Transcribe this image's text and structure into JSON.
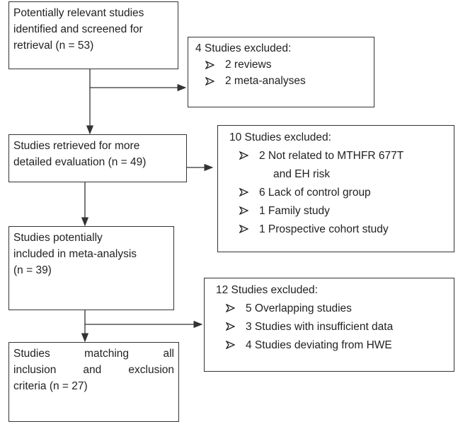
{
  "boxes": [
    {
      "lines": [
        "Potentially relevant studies",
        "identified and screened for",
        "retrieval (n = 53)"
      ]
    },
    {
      "lines": [
        "Studies retrieved for more",
        "detailed evaluation (n = 49)"
      ]
    },
    {
      "lines": [
        "Studies potentially",
        "included in meta-analysis",
        "(n = 39)"
      ]
    },
    {
      "lines": [
        "Studies matching all",
        "inclusion and exclusion",
        "criteria (n = 27)"
      ]
    }
  ],
  "exclusions": [
    {
      "title": "4 Studies excluded:",
      "items": [
        [
          "2 reviews"
        ],
        [
          "2 meta-analyses"
        ]
      ]
    },
    {
      "title": "10 Studies excluded:",
      "items": [
        [
          "2 Not related to MTHFR 677T",
          "and EH risk"
        ],
        [
          "6 Lack of control group"
        ],
        [
          "1 Family study"
        ],
        [
          "1 Prospective cohort study"
        ]
      ]
    },
    {
      "title": "12 Studies excluded:",
      "items": [
        [
          "5 Overlapping studies"
        ],
        [
          "3 Studies with insufficient data"
        ],
        [
          "4 Studies deviating from HWE"
        ]
      ]
    }
  ]
}
